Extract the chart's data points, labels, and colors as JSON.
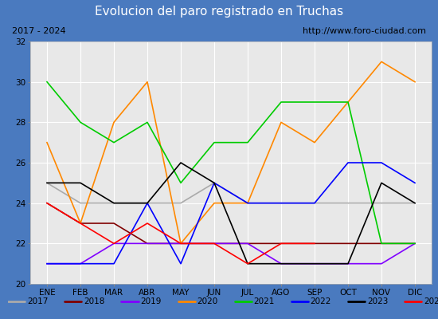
{
  "title": "Evolucion del paro registrado en Truchas",
  "subtitle_left": "2017 - 2024",
  "subtitle_right": "http://www.foro-ciudad.com",
  "months": [
    "ENE",
    "FEB",
    "MAR",
    "ABR",
    "MAY",
    "JUN",
    "JUL",
    "AGO",
    "SEP",
    "OCT",
    "NOV",
    "DIC"
  ],
  "ylim": [
    20,
    32
  ],
  "yticks": [
    20,
    22,
    24,
    26,
    28,
    30,
    32
  ],
  "series": {
    "2017": {
      "values": [
        25,
        24,
        24,
        24,
        24,
        25,
        24,
        24,
        24,
        24,
        24,
        24
      ],
      "color": "#aaaaaa",
      "linewidth": 1.2
    },
    "2018": {
      "values": [
        24,
        23,
        23,
        22,
        22,
        22,
        22,
        22,
        22,
        22,
        22,
        22
      ],
      "color": "#800000",
      "linewidth": 1.2
    },
    "2019": {
      "values": [
        21,
        21,
        22,
        22,
        22,
        22,
        22,
        21,
        21,
        21,
        21,
        22
      ],
      "color": "#8000ff",
      "linewidth": 1.2
    },
    "2020": {
      "values": [
        27,
        23,
        28,
        30,
        22,
        24,
        24,
        28,
        27,
        29,
        31,
        30
      ],
      "color": "#ff8800",
      "linewidth": 1.2
    },
    "2021": {
      "values": [
        30,
        28,
        27,
        28,
        25,
        27,
        27,
        29,
        29,
        29,
        22,
        22
      ],
      "color": "#00cc00",
      "linewidth": 1.2
    },
    "2022": {
      "values": [
        21,
        21,
        21,
        24,
        21,
        25,
        24,
        24,
        24,
        26,
        26,
        25
      ],
      "color": "#0000ff",
      "linewidth": 1.2
    },
    "2023": {
      "values": [
        25,
        25,
        24,
        24,
        26,
        25,
        21,
        21,
        21,
        21,
        25,
        24
      ],
      "color": "#000000",
      "linewidth": 1.2
    },
    "2024": {
      "values": [
        24,
        23,
        22,
        23,
        22,
        22,
        21,
        22,
        22,
        null,
        null,
        null
      ],
      "color": "#ff0000",
      "linewidth": 1.2
    }
  },
  "title_bg": "#4a7abf",
  "title_color": "#ffffff",
  "subtitle_bg": "#d8d8d8",
  "subtitle_color": "#000000",
  "plot_bg": "#e8e8e8",
  "grid_color": "#ffffff",
  "legend_bg": "#e8e8e8",
  "title_fontsize": 11,
  "subtitle_fontsize": 8,
  "axis_fontsize": 7.5,
  "legend_fontsize": 7.5
}
